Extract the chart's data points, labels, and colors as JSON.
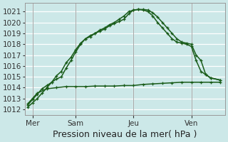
{
  "background_color": "#cce8e8",
  "grid_color": "#ffffff",
  "line_color": "#1a5c1a",
  "xlabel": "Pression niveau de la mer( hPa )",
  "ylim": [
    1011.5,
    1021.8
  ],
  "yticks": [
    1012,
    1013,
    1014,
    1015,
    1016,
    1017,
    1018,
    1019,
    1020,
    1021
  ],
  "xlim": [
    -0.3,
    20.5
  ],
  "xtick_positions": [
    0.5,
    5,
    11,
    17
  ],
  "xtick_labels": [
    "Mer",
    "Sam",
    "Jeu",
    "Ven"
  ],
  "vlines": [
    0.5,
    5,
    11,
    17
  ],
  "line1_x": [
    0,
    0.5,
    1,
    1.5,
    2,
    2.5,
    3,
    3.5,
    4,
    4.5,
    5,
    5.5,
    6,
    6.5,
    7,
    7.5,
    8,
    8.5,
    9,
    9.5,
    10,
    10.5,
    11,
    11.5,
    12,
    12.5,
    13,
    13.5,
    14,
    14.5,
    15,
    15.5,
    16,
    16.5,
    17,
    17.5,
    18,
    18.5,
    19,
    20
  ],
  "line1_y": [
    1012.2,
    1012.6,
    1013.0,
    1013.5,
    1014.0,
    1014.5,
    1015.1,
    1015.5,
    1016.3,
    1016.8,
    1017.5,
    1018.1,
    1018.5,
    1018.7,
    1019.0,
    1019.2,
    1019.4,
    1019.7,
    1019.9,
    1020.1,
    1020.3,
    1020.8,
    1021.15,
    1021.2,
    1021.2,
    1021.15,
    1020.9,
    1020.5,
    1020.0,
    1019.5,
    1019.0,
    1018.5,
    1018.2,
    1018.1,
    1018.0,
    1017.0,
    1016.5,
    1015.2,
    1014.9,
    1014.7
  ],
  "line2_x": [
    0,
    0.5,
    1,
    1.5,
    2,
    2.5,
    3,
    3.5,
    4,
    4.5,
    5,
    5.5,
    6,
    6.5,
    7,
    7.5,
    8,
    8.5,
    9,
    9.5,
    10,
    10.5,
    11,
    11.5,
    12,
    12.5,
    13,
    13.5,
    14,
    14.5,
    15,
    15.5,
    16,
    16.5,
    17,
    17.5,
    18,
    18.5,
    19,
    20
  ],
  "line2_y": [
    1012.4,
    1012.9,
    1013.4,
    1013.9,
    1014.2,
    1014.5,
    1014.8,
    1015.0,
    1015.8,
    1016.5,
    1017.3,
    1018.0,
    1018.5,
    1018.8,
    1019.0,
    1019.3,
    1019.5,
    1019.8,
    1020.0,
    1020.3,
    1020.6,
    1021.0,
    1021.15,
    1021.2,
    1021.15,
    1021.0,
    1020.6,
    1020.0,
    1019.5,
    1019.0,
    1018.5,
    1018.2,
    1018.1,
    1018.0,
    1017.8,
    1016.5,
    1015.5,
    1015.2,
    1014.9,
    1014.7
  ],
  "line3_x": [
    0,
    0.5,
    1,
    2,
    3,
    4,
    5,
    6,
    7,
    8,
    9,
    10,
    11,
    12,
    13,
    14,
    15,
    16,
    17,
    18,
    19,
    20
  ],
  "line3_y": [
    1012.5,
    1013.0,
    1013.5,
    1013.9,
    1014.0,
    1014.1,
    1014.1,
    1014.1,
    1014.15,
    1014.15,
    1014.15,
    1014.2,
    1014.2,
    1014.3,
    1014.35,
    1014.4,
    1014.45,
    1014.5,
    1014.5,
    1014.5,
    1014.5,
    1014.5
  ],
  "tick_label_fontsize": 7.5,
  "xlabel_fontsize": 9,
  "linewidth": 1.1,
  "marker_size": 3.5
}
